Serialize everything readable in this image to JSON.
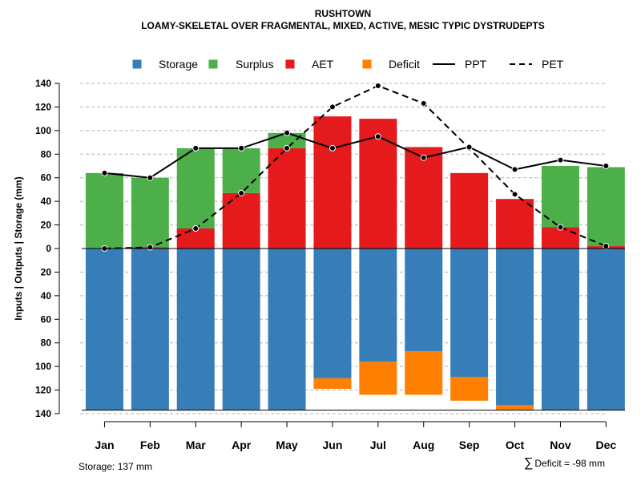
{
  "chart_data": {
    "type": "bar",
    "title": "RUSHTOWN",
    "subtitle": "LOAMY-SKELETAL OVER FRAGMENTAL, MIXED, ACTIVE, MESIC TYPIC DYSTRUDEPTS",
    "ylabel": "Inputs | Outputs | Storage    (mm)",
    "ylim": [
      -140,
      140
    ],
    "yticks": [
      140,
      120,
      100,
      80,
      60,
      40,
      20,
      0,
      20,
      40,
      60,
      80,
      100,
      120,
      140
    ],
    "categories": [
      "Jan",
      "Feb",
      "Mar",
      "Apr",
      "May",
      "Jun",
      "Jul",
      "Aug",
      "Sep",
      "Oct",
      "Nov",
      "Dec"
    ],
    "series": [
      {
        "name": "Storage",
        "color": "#377EB8",
        "values": [
          137,
          137,
          137,
          137,
          137,
          110,
          96,
          87,
          109,
          133,
          137,
          137
        ]
      },
      {
        "name": "Surplus",
        "color": "#4DAF4A",
        "values": [
          64,
          59,
          68,
          38,
          13,
          0,
          0,
          0,
          0,
          0,
          52,
          67
        ]
      },
      {
        "name": "AET",
        "color": "#E41A1C",
        "values": [
          0,
          1,
          17,
          47,
          85,
          112,
          110,
          86,
          64,
          42,
          18,
          2
        ]
      },
      {
        "name": "Deficit",
        "color": "#FF7F00",
        "values": [
          0,
          0,
          0,
          0,
          0,
          9,
          28,
          37,
          20,
          4,
          0,
          0
        ]
      },
      {
        "name": "PPT",
        "style": "solid",
        "values": [
          64,
          60,
          85,
          85,
          98,
          85,
          95,
          77,
          86,
          67,
          75,
          70
        ]
      },
      {
        "name": "PET",
        "style": "dashed",
        "values": [
          0,
          1,
          17,
          47,
          85,
          120,
          138,
          123,
          85,
          46,
          18,
          2
        ]
      }
    ],
    "legend": {
      "placement": "top"
    },
    "grid": true
  },
  "footer": {
    "storage_label": "Storage: 137 mm",
    "deficit_symbol": "∑",
    "deficit_label": "Deficit = -98 mm"
  }
}
